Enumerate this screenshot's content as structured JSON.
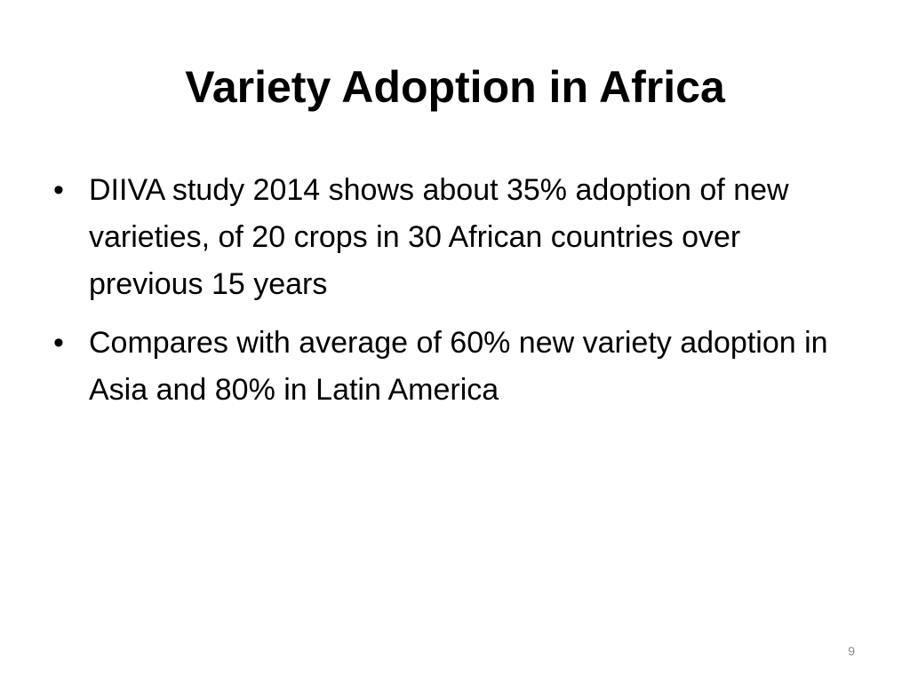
{
  "slide": {
    "title": "Variety Adoption in Africa",
    "bullets": [
      "DIIVA study 2014 shows about 35% adoption of new varieties, of 20 crops in 30 African countries over previous 15 years",
      "Compares with average of 60% new variety adoption in Asia and 80% in Latin America"
    ],
    "bullet_symbol": "•",
    "page_number": "9"
  },
  "colors": {
    "background": "#ffffff",
    "text": "#000000",
    "page_number": "#898989"
  }
}
